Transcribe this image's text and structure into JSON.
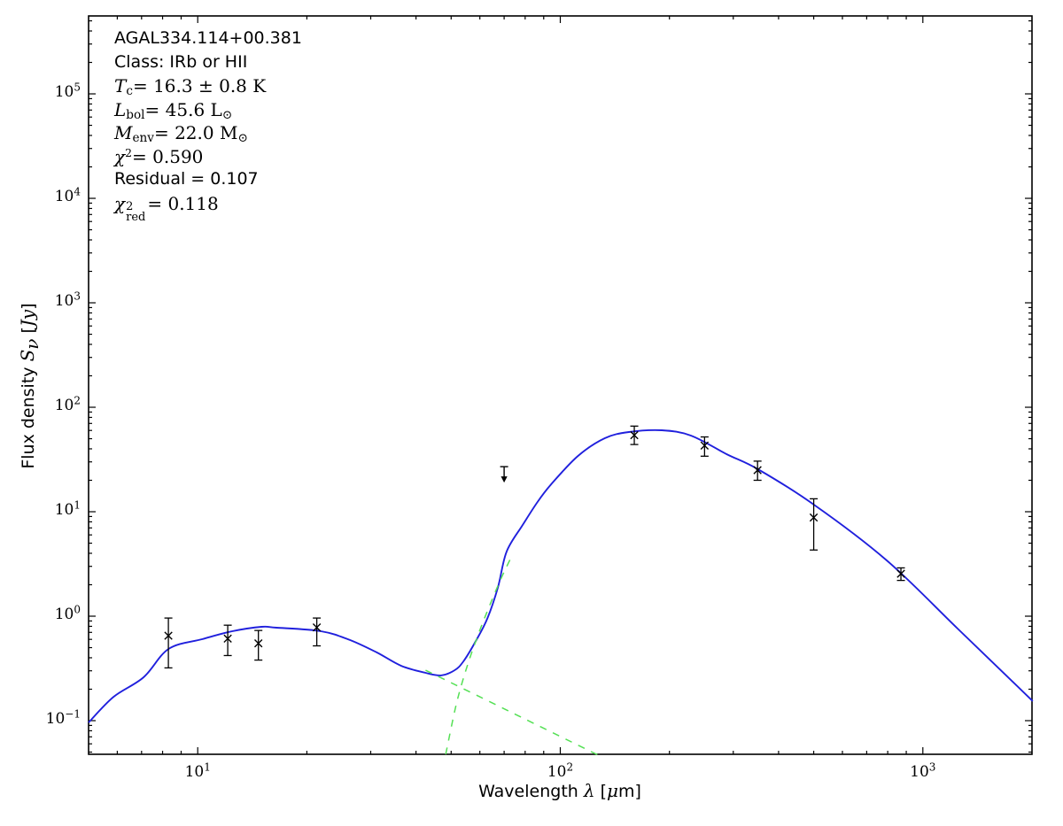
{
  "annotation": {
    "lines": [
      {
        "font": "sans",
        "parts": [
          {
            "t": "AGAL334.114+00.381"
          }
        ]
      },
      {
        "font": "sans",
        "parts": [
          {
            "t": "Class: IRb or HII"
          }
        ]
      },
      {
        "font": "serif",
        "parts": [
          {
            "t": "T",
            "s": "i"
          },
          {
            "t": "c",
            "s": "sub"
          },
          {
            "t": " = 16.3 ± 0.8 K"
          }
        ]
      },
      {
        "font": "serif",
        "parts": [
          {
            "t": "L",
            "s": "i"
          },
          {
            "t": "bol",
            "s": "sub"
          },
          {
            "t": " = 45.6 L"
          },
          {
            "t": "⊙",
            "s": "sub"
          }
        ]
      },
      {
        "font": "serif",
        "parts": [
          {
            "t": "M",
            "s": "i"
          },
          {
            "t": "env",
            "s": "sub"
          },
          {
            "t": " = 22.0 M"
          },
          {
            "t": "⊙",
            "s": "sub"
          }
        ]
      },
      {
        "font": "serif",
        "parts": [
          {
            "t": "χ",
            "s": "i"
          },
          {
            "t": "2",
            "s": "sup"
          },
          {
            "t": " = 0.590"
          }
        ]
      },
      {
        "font": "sans",
        "parts": [
          {
            "t": "Residual = 0.107"
          }
        ]
      },
      {
        "font": "serif",
        "parts": [
          {
            "t": "χ",
            "s": "i"
          },
          {
            "s": "supsub",
            "sup": "2",
            "sub": "red"
          },
          {
            "t": " = 0.118"
          }
        ]
      }
    ]
  },
  "axes": {
    "x_label_parts": [
      {
        "t": "Wavelength ",
        "f": "sans"
      },
      {
        "t": "λ",
        "s": "i",
        "f": "serif"
      },
      {
        "t": " [",
        "f": "sans"
      },
      {
        "t": "μ",
        "s": "i",
        "f": "serif"
      },
      {
        "t": "m]",
        "f": "sans"
      }
    ],
    "y_label_parts": [
      {
        "t": "Flux density ",
        "f": "sans"
      },
      {
        "t": "S",
        "s": "i",
        "f": "serif"
      },
      {
        "t": "ν",
        "s": "subi",
        "f": "serif"
      },
      {
        "t": " [",
        "f": "sans"
      },
      {
        "t": "Jy",
        "s": "i",
        "f": "serif"
      },
      {
        "t": "]",
        "f": "sans"
      }
    ],
    "x_tick_exponents": [
      "1",
      "2",
      "3"
    ],
    "y_tick_exponents": [
      "5",
      "4",
      "3",
      "2",
      "1",
      "0",
      "−1"
    ],
    "x_log_range": [
      0.69897,
      3.30103
    ],
    "y_log_range": [
      -1.322,
      5.746
    ]
  },
  "chart_data": {
    "type": "line",
    "title": "SED fit of AGAL334.114+00.381 (log-log plot)",
    "xlabel": "Wavelength λ [μm]",
    "ylabel": "Flux density Sν [Jy]",
    "xlim": [
      5,
      2000
    ],
    "ylim": [
      0.0476,
      557000
    ],
    "grid": false,
    "legend": "none",
    "colors": {
      "total_model": "#2020dd",
      "components": "#55e055",
      "data": "#000000"
    },
    "observed_points": [
      {
        "lam": 8.3,
        "flux": 0.65,
        "hi": 0.96,
        "lo": 0.32
      },
      {
        "lam": 12.1,
        "flux": 0.61,
        "hi": 0.82,
        "lo": 0.42
      },
      {
        "lam": 14.7,
        "flux": 0.55,
        "hi": 0.73,
        "lo": 0.38
      },
      {
        "lam": 21.3,
        "flux": 0.78,
        "hi": 0.96,
        "lo": 0.52
      },
      {
        "lam": 160,
        "flux": 54,
        "hi": 66,
        "lo": 44
      },
      {
        "lam": 250,
        "flux": 43,
        "hi": 52,
        "lo": 34
      },
      {
        "lam": 350,
        "flux": 25,
        "hi": 30.5,
        "lo": 20
      },
      {
        "lam": 500,
        "flux": 8.8,
        "hi": 13.3,
        "lo": 4.3
      },
      {
        "lam": 870,
        "flux": 2.55,
        "hi": 2.9,
        "lo": 2.2
      }
    ],
    "upper_limits": [
      {
        "lam": 70,
        "flux": 27
      }
    ],
    "series": [
      {
        "name": "total_model",
        "style": "solid",
        "color": "#2020dd",
        "points": [
          [
            5.0,
            0.096
          ],
          [
            5.86,
            0.169
          ],
          [
            7.09,
            0.26
          ],
          [
            8.31,
            0.486
          ],
          [
            10.28,
            0.602
          ],
          [
            12.45,
            0.718
          ],
          [
            15.0,
            0.791
          ],
          [
            16.51,
            0.776
          ],
          [
            21.87,
            0.718
          ],
          [
            26.33,
            0.59
          ],
          [
            31.2,
            0.449
          ],
          [
            36.43,
            0.335
          ],
          [
            42.52,
            0.287
          ],
          [
            46.88,
            0.271
          ],
          [
            51.14,
            0.304
          ],
          [
            54.07,
            0.37
          ],
          [
            58.68,
            0.59
          ],
          [
            63.02,
            0.962
          ],
          [
            67.33,
            1.9
          ],
          [
            71.1,
            4.15
          ],
          [
            78.75,
            7.46
          ],
          [
            86.52,
            12.4
          ],
          [
            94.38,
            18.3
          ],
          [
            111.9,
            34.2
          ],
          [
            132.6,
            50.5
          ],
          [
            154.6,
            57.9
          ],
          [
            190.5,
            60.2
          ],
          [
            229.2,
            53.6
          ],
          [
            288.0,
            35.5
          ],
          [
            350.8,
            25.5
          ],
          [
            500.4,
            11.7
          ],
          [
            795.0,
            3.42
          ],
          [
            1247.0,
            0.761
          ],
          [
            2009.0,
            0.154
          ]
        ]
      },
      {
        "name": "cold_component",
        "style": "dashed",
        "color": "#55e055",
        "points": [
          [
            48.3,
            0.0476
          ],
          [
            51.7,
            0.145
          ],
          [
            55.4,
            0.335
          ],
          [
            59.6,
            0.69
          ],
          [
            63.7,
            1.24
          ],
          [
            68.4,
            2.23
          ],
          [
            73.5,
            3.77
          ]
        ]
      },
      {
        "name": "hot_component",
        "style": "dashed",
        "color": "#55e055",
        "points": [
          [
            42.5,
            0.304
          ],
          [
            72.6,
            0.122
          ],
          [
            127.3,
            0.0467
          ]
        ]
      }
    ]
  }
}
